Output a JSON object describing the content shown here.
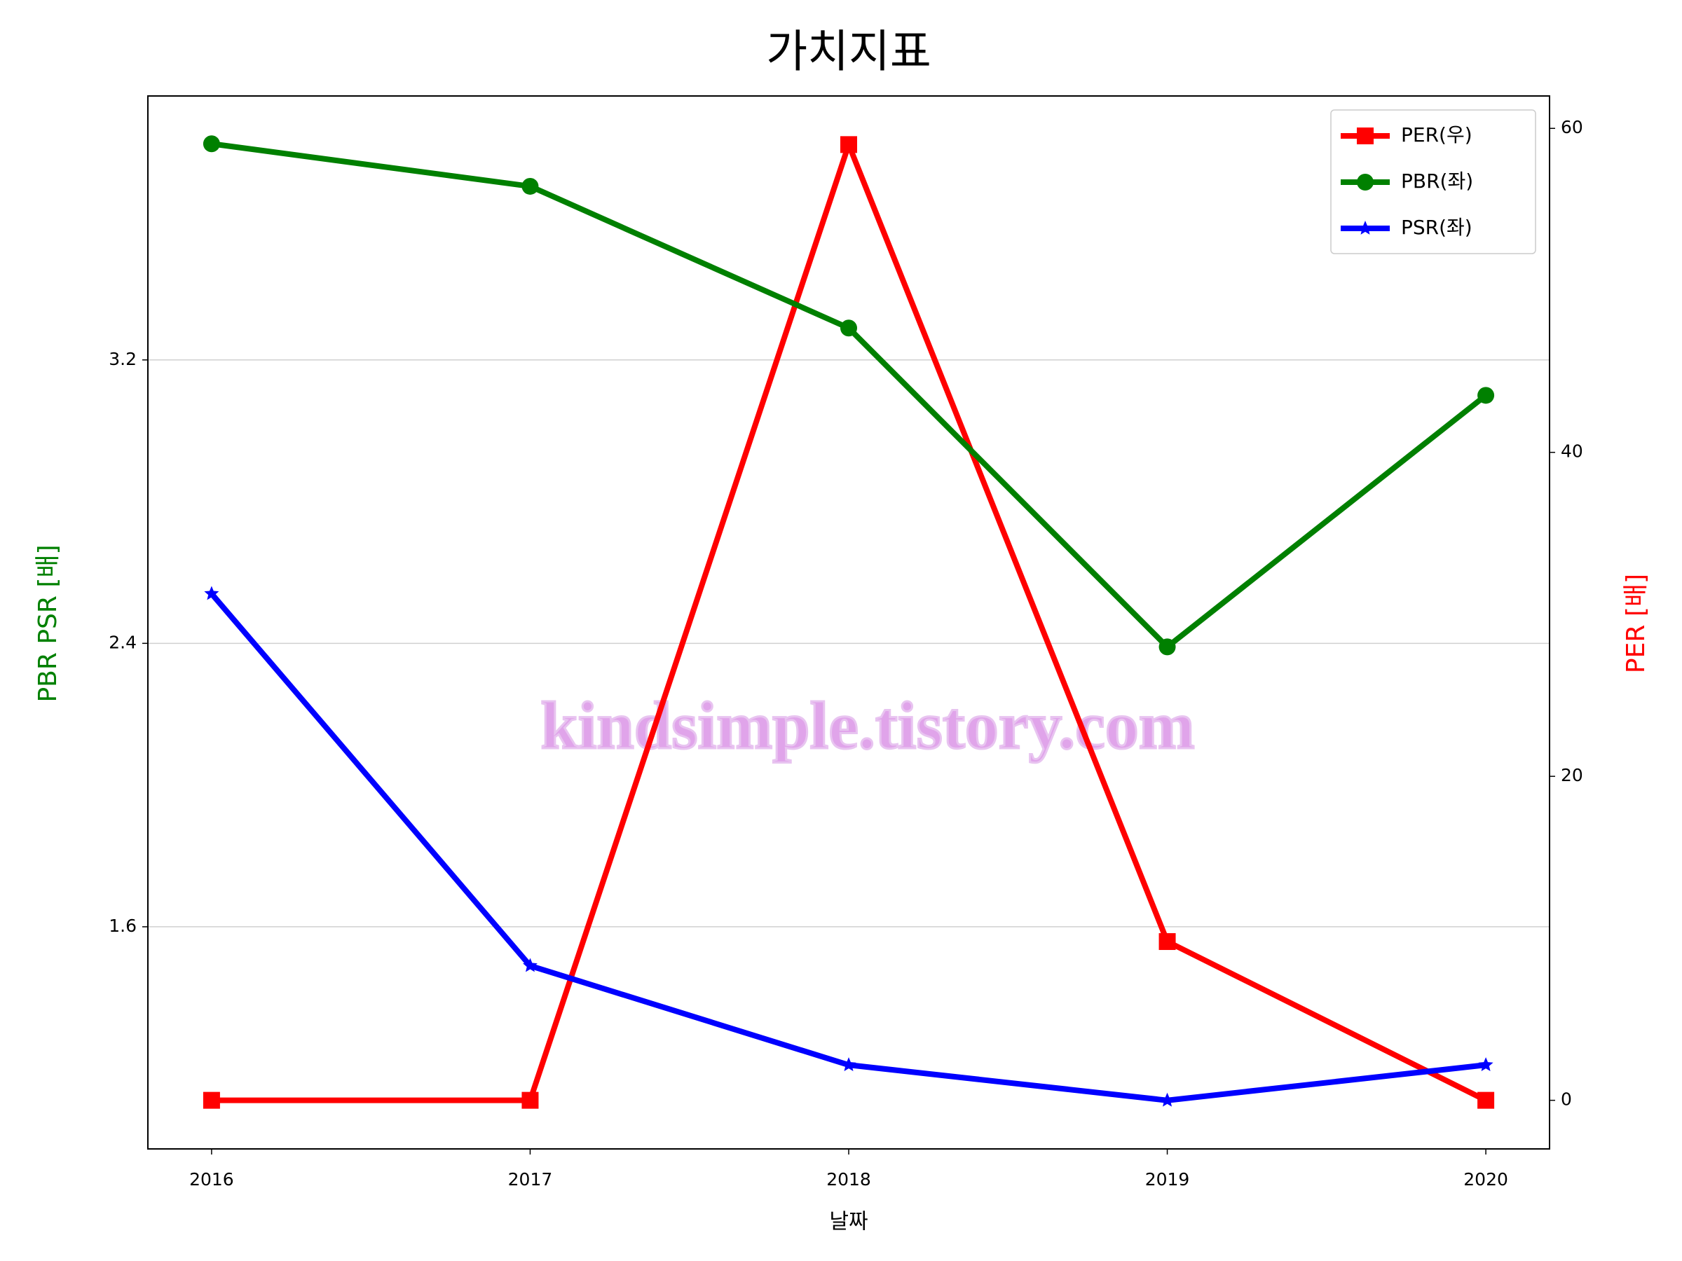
{
  "chart_data": {
    "type": "line",
    "title": "가치지표",
    "xlabel": "날짜",
    "ylabel": "PBR PSR [배]",
    "y2label": "PER [배]",
    "x": [
      2016,
      2017,
      2018,
      2019,
      2020
    ],
    "xlim": [
      2015.8,
      2020.2
    ],
    "xticks": [
      2016,
      2017,
      2018,
      2019,
      2020
    ],
    "ylim": [
      0.973,
      3.945
    ],
    "yticks": [
      1.6,
      2.4,
      3.2
    ],
    "y2lim": [
      -3,
      62
    ],
    "y2ticks": [
      0,
      20,
      40,
      60
    ],
    "grid": true,
    "legend": "upper right",
    "watermark": "kindsimple.tistory.com",
    "series": [
      {
        "name": "PER(우)",
        "color": "#ff0000",
        "marker": "square",
        "axis": "y2",
        "values": [
          0,
          0,
          59,
          9.8,
          0
        ]
      },
      {
        "name": "PBR(좌)",
        "color": "#008000",
        "marker": "circle",
        "values": [
          3.81,
          3.69,
          3.29,
          2.39,
          3.1
        ]
      },
      {
        "name": "PSR(좌)",
        "color": "#0000ff",
        "marker": "star",
        "values": [
          2.54,
          1.49,
          1.21,
          1.11,
          1.21
        ]
      }
    ]
  }
}
